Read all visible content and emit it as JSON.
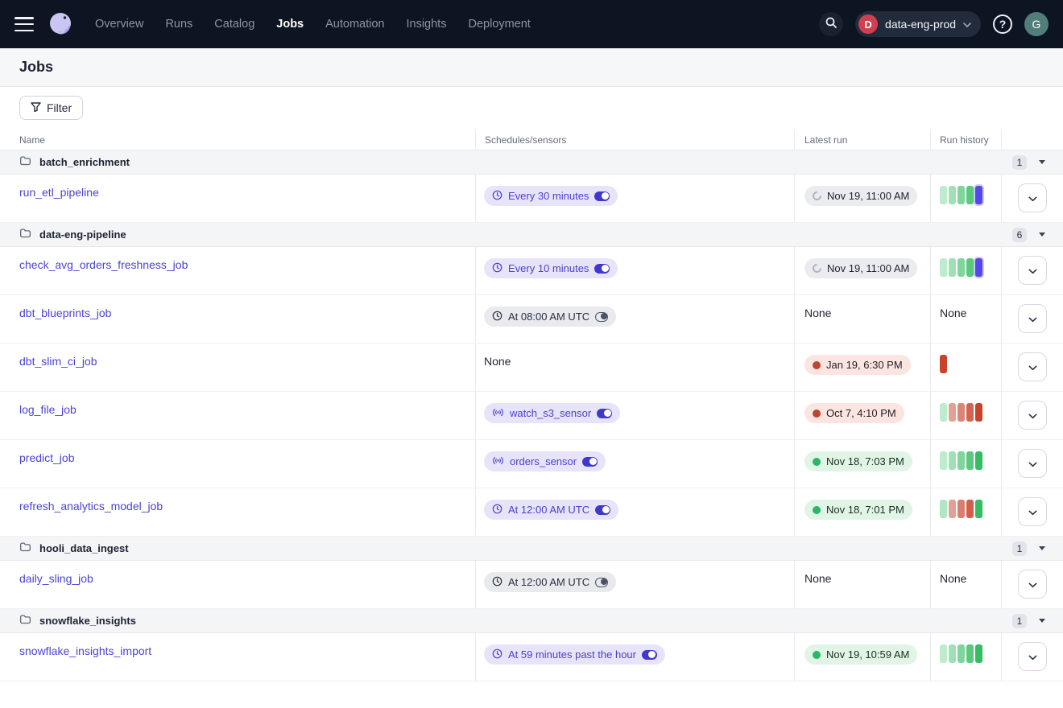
{
  "nav": {
    "items": [
      {
        "label": "Overview",
        "active": false
      },
      {
        "label": "Runs",
        "active": false
      },
      {
        "label": "Catalog",
        "active": false
      },
      {
        "label": "Jobs",
        "active": true
      },
      {
        "label": "Automation",
        "active": false
      },
      {
        "label": "Insights",
        "active": false
      },
      {
        "label": "Deployment",
        "active": false
      }
    ],
    "deployment_switcher": {
      "initial": "D",
      "name": "data-eng-prod"
    },
    "help_label": "?",
    "user_initial": "G"
  },
  "page": {
    "title": "Jobs"
  },
  "toolbar": {
    "filter_label": "Filter"
  },
  "table": {
    "columns": {
      "name": "Name",
      "schedules": "Schedules/sensors",
      "latest_run": "Latest run",
      "run_history": "Run history"
    },
    "none_label": "None",
    "groups": [
      {
        "name": "batch_enrichment",
        "count": "1",
        "jobs": [
          {
            "name": "run_etl_pipeline",
            "schedule": {
              "kind": "schedule",
              "label": "Every 30 minutes",
              "enabled": true
            },
            "latest_run": {
              "status": "in_progress",
              "label": "Nov 19, 11:00 AM"
            },
            "run_history": {
              "bars": [
                {
                  "color": "green",
                  "opacity": 0.32
                },
                {
                  "color": "green",
                  "opacity": 0.47
                },
                {
                  "color": "green",
                  "opacity": 0.63
                },
                {
                  "color": "green",
                  "opacity": 0.82
                },
                {
                  "color": "blue",
                  "opacity": 1,
                  "glow": true
                }
              ]
            }
          }
        ]
      },
      {
        "name": "data-eng-pipeline",
        "count": "6",
        "jobs": [
          {
            "name": "check_avg_orders_freshness_job",
            "schedule": {
              "kind": "schedule",
              "label": "Every 10 minutes",
              "enabled": true
            },
            "latest_run": {
              "status": "in_progress",
              "label": "Nov 19, 11:00 AM"
            },
            "run_history": {
              "bars": [
                {
                  "color": "green",
                  "opacity": 0.32
                },
                {
                  "color": "green",
                  "opacity": 0.47
                },
                {
                  "color": "green",
                  "opacity": 0.63
                },
                {
                  "color": "green",
                  "opacity": 0.82
                },
                {
                  "color": "blue",
                  "opacity": 1,
                  "glow": true
                }
              ]
            }
          },
          {
            "name": "dbt_blueprints_job",
            "schedule": {
              "kind": "schedule",
              "label": "At 08:00 AM UTC",
              "enabled": false
            },
            "latest_run": {
              "status": "none"
            },
            "run_history": {
              "none": true
            }
          },
          {
            "name": "dbt_slim_ci_job",
            "schedule": null,
            "latest_run": {
              "status": "failure",
              "label": "Jan 19, 6:30 PM"
            },
            "run_history": {
              "bars": [
                {
                  "color": "red",
                  "opacity": 1
                }
              ]
            }
          },
          {
            "name": "log_file_job",
            "schedule": {
              "kind": "sensor",
              "label": "watch_s3_sensor",
              "enabled": true
            },
            "latest_run": {
              "status": "failure",
              "label": "Oct 7, 4:10 PM"
            },
            "run_history": {
              "bars": [
                {
                  "color": "green",
                  "opacity": 0.32
                },
                {
                  "color": "red",
                  "opacity": 0.5
                },
                {
                  "color": "red",
                  "opacity": 0.65
                },
                {
                  "color": "red",
                  "opacity": 0.82
                },
                {
                  "color": "red",
                  "opacity": 1
                }
              ]
            }
          },
          {
            "name": "predict_job",
            "schedule": {
              "kind": "sensor",
              "label": "orders_sensor",
              "enabled": true
            },
            "latest_run": {
              "status": "success",
              "label": "Nov 18, 7:03 PM"
            },
            "run_history": {
              "bars": [
                {
                  "color": "green",
                  "opacity": 0.32
                },
                {
                  "color": "green",
                  "opacity": 0.47
                },
                {
                  "color": "green",
                  "opacity": 0.63
                },
                {
                  "color": "green",
                  "opacity": 0.82
                },
                {
                  "color": "green",
                  "opacity": 1
                }
              ]
            }
          },
          {
            "name": "refresh_analytics_model_job",
            "schedule": {
              "kind": "schedule",
              "label": "At 12:00 AM UTC",
              "enabled": true
            },
            "latest_run": {
              "status": "success",
              "label": "Nov 18, 7:01 PM"
            },
            "run_history": {
              "bars": [
                {
                  "color": "green",
                  "opacity": 0.38
                },
                {
                  "color": "red",
                  "opacity": 0.5
                },
                {
                  "color": "red",
                  "opacity": 0.68
                },
                {
                  "color": "red",
                  "opacity": 0.85
                },
                {
                  "color": "green",
                  "opacity": 1
                }
              ]
            }
          }
        ]
      },
      {
        "name": "hooli_data_ingest",
        "count": "1",
        "jobs": [
          {
            "name": "daily_sling_job",
            "schedule": {
              "kind": "schedule",
              "label": "At 12:00 AM UTC",
              "enabled": false
            },
            "latest_run": {
              "status": "none"
            },
            "run_history": {
              "none": true
            }
          }
        ]
      },
      {
        "name": "snowflake_insights",
        "count": "1",
        "jobs": [
          {
            "name": "snowflake_insights_import",
            "schedule": {
              "kind": "schedule",
              "label": "At 59 minutes past the hour",
              "enabled": true
            },
            "latest_run": {
              "status": "success",
              "label": "Nov 19, 10:59 AM"
            },
            "run_history": {
              "bars": [
                {
                  "color": "green",
                  "opacity": 0.32
                },
                {
                  "color": "green",
                  "opacity": 0.47
                },
                {
                  "color": "green",
                  "opacity": 0.63
                },
                {
                  "color": "green",
                  "opacity": 0.82
                },
                {
                  "color": "green",
                  "opacity": 1
                }
              ]
            }
          }
        ]
      }
    ]
  },
  "colors": {
    "bar_green": "#34bd62",
    "bar_red": "#c8432c",
    "bar_blue": "#5348e8",
    "bar_glow": "#cdc9f5",
    "dot_green": "#2eb567",
    "dot_red": "#be4432",
    "accent_indigo": "#4a41d0",
    "nav_bg": "#0d1422"
  }
}
